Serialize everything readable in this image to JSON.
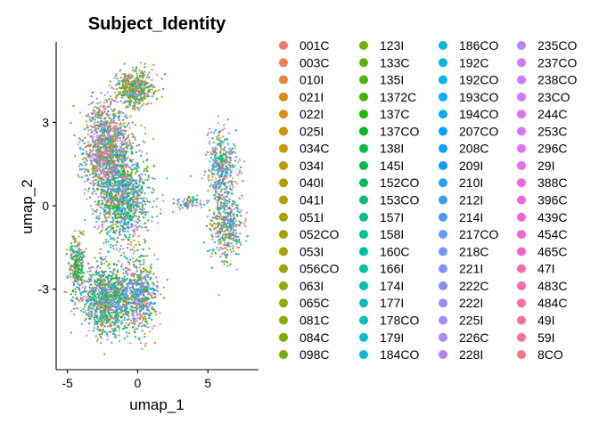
{
  "chart_data": {
    "type": "scatter",
    "title": "Subject_Identity",
    "xlabel": "umap_1",
    "ylabel": "umap_2",
    "xlim": [
      -5.8,
      8.6
    ],
    "ylim": [
      -5.9,
      5.9
    ],
    "x_ticks": [
      -5,
      0,
      5
    ],
    "y_ticks": [
      -3,
      0,
      3
    ],
    "grid": false,
    "legend_position": "right",
    "legend_title": "",
    "legend_columns": 4,
    "series": [
      {
        "name": "001C",
        "color": "#F8766D"
      },
      {
        "name": "003C",
        "color": "#F27D52"
      },
      {
        "name": "010I",
        "color": "#EB8335"
      },
      {
        "name": "021I",
        "color": "#E38900"
      },
      {
        "name": "022I",
        "color": "#DC8E00"
      },
      {
        "name": "025I",
        "color": "#D39200"
      },
      {
        "name": "034C",
        "color": "#C99800"
      },
      {
        "name": "034I",
        "color": "#C09B00"
      },
      {
        "name": "040I",
        "color": "#B79F00"
      },
      {
        "name": "041I",
        "color": "#ADA200"
      },
      {
        "name": "051I",
        "color": "#A3A500"
      },
      {
        "name": "052CO",
        "color": "#A5A000"
      },
      {
        "name": "053I",
        "color": "#A9A100"
      },
      {
        "name": "056CO",
        "color": "#9FA300"
      },
      {
        "name": "063I",
        "color": "#95A900"
      },
      {
        "name": "065C",
        "color": "#8EAB00"
      },
      {
        "name": "081C",
        "color": "#86AE00"
      },
      {
        "name": "084C",
        "color": "#7CAE00"
      },
      {
        "name": "098C",
        "color": "#72B000"
      },
      {
        "name": "123I",
        "color": "#6BB100"
      },
      {
        "name": "133C",
        "color": "#5EB300"
      },
      {
        "name": "135I",
        "color": "#4FB600"
      },
      {
        "name": "1372C",
        "color": "#3CB800"
      },
      {
        "name": "137C",
        "color": "#1CBA00"
      },
      {
        "name": "137CO",
        "color": "#00BB1F"
      },
      {
        "name": "138I",
        "color": "#00BC3E"
      },
      {
        "name": "145I",
        "color": "#00BD53"
      },
      {
        "name": "152CO",
        "color": "#00BE67"
      },
      {
        "name": "153CO",
        "color": "#00BF78"
      },
      {
        "name": "157I",
        "color": "#00C087"
      },
      {
        "name": "158I",
        "color": "#00C096"
      },
      {
        "name": "160C",
        "color": "#00C19F"
      },
      {
        "name": "166I",
        "color": "#00C1A7"
      },
      {
        "name": "174I",
        "color": "#00C0B1"
      },
      {
        "name": "177I",
        "color": "#00C0BA"
      },
      {
        "name": "178CO",
        "color": "#00BFC4"
      },
      {
        "name": "179I",
        "color": "#00BECD"
      },
      {
        "name": "184CO",
        "color": "#00BCD5"
      },
      {
        "name": "186CO",
        "color": "#00BADE"
      },
      {
        "name": "192C",
        "color": "#00B8E5"
      },
      {
        "name": "192CO",
        "color": "#00B4EC"
      },
      {
        "name": "193CO",
        "color": "#00B0F2"
      },
      {
        "name": "194CO",
        "color": "#00ACF6"
      },
      {
        "name": "207CO",
        "color": "#00A6FA"
      },
      {
        "name": "208C",
        "color": "#00A5FF"
      },
      {
        "name": "209I",
        "color": "#00A0FF"
      },
      {
        "name": "210I",
        "color": "#21A0FF"
      },
      {
        "name": "212I",
        "color": "#3A9AFF"
      },
      {
        "name": "214I",
        "color": "#4D96FF"
      },
      {
        "name": "217CO",
        "color": "#619CFF"
      },
      {
        "name": "218C",
        "color": "#6F97FF"
      },
      {
        "name": "221I",
        "color": "#7B92FF"
      },
      {
        "name": "222C",
        "color": "#878EFF"
      },
      {
        "name": "222I",
        "color": "#9590FF"
      },
      {
        "name": "225I",
        "color": "#9F8CFF"
      },
      {
        "name": "226C",
        "color": "#A987FF"
      },
      {
        "name": "228I",
        "color": "#B383FF"
      },
      {
        "name": "235CO",
        "color": "#BD7EFF"
      },
      {
        "name": "237CO",
        "color": "#C77CFF"
      },
      {
        "name": "238CO",
        "color": "#D076FF"
      },
      {
        "name": "23CO",
        "color": "#D874FD"
      },
      {
        "name": "244C",
        "color": "#DE72F6"
      },
      {
        "name": "253C",
        "color": "#E36EF6"
      },
      {
        "name": "296C",
        "color": "#E76BF3"
      },
      {
        "name": "29I",
        "color": "#EB69EC"
      },
      {
        "name": "388C",
        "color": "#F066E6"
      },
      {
        "name": "396C",
        "color": "#F364DE"
      },
      {
        "name": "439C",
        "color": "#F563D6"
      },
      {
        "name": "454C",
        "color": "#F763CD"
      },
      {
        "name": "465C",
        "color": "#F864C3"
      },
      {
        "name": "47I",
        "color": "#F966BA"
      },
      {
        "name": "483C",
        "color": "#FA68B0"
      },
      {
        "name": "484C",
        "color": "#FA6BA6"
      },
      {
        "name": "49I",
        "color": "#F9709B"
      },
      {
        "name": "59I",
        "color": "#F8738F"
      },
      {
        "name": "8CO",
        "color": "#F8767D"
      }
    ],
    "clusters": [
      {
        "cx": -2.1,
        "cy": 2.0,
        "sx": 1.35,
        "sy": 1.35,
        "n": 1300,
        "bias": [
          3,
          10,
          56,
          58,
          54
        ]
      },
      {
        "cx": -1.0,
        "cy": 0.2,
        "sx": 1.5,
        "sy": 1.25,
        "n": 1000,
        "bias": [
          20,
          26,
          32,
          41
        ]
      },
      {
        "cx": -2.1,
        "cy": -3.4,
        "sx": 1.4,
        "sy": 1.0,
        "n": 1100,
        "bias": [
          24,
          25,
          30,
          35,
          49
        ]
      },
      {
        "cx": 0.2,
        "cy": -3.2,
        "sx": 1.0,
        "sy": 1.1,
        "n": 550,
        "bias": [
          60,
          18,
          44
        ]
      },
      {
        "cx": -0.3,
        "cy": 4.2,
        "sx": 1.1,
        "sy": 0.5,
        "n": 450,
        "bias": [
          17,
          18,
          20
        ]
      },
      {
        "cx": -4.3,
        "cy": -2.2,
        "sx": 0.45,
        "sy": 0.9,
        "n": 260,
        "bias": [
          23,
          24,
          25
        ]
      },
      {
        "cx": 6.0,
        "cy": 1.3,
        "sx": 0.8,
        "sy": 1.0,
        "n": 400,
        "bias": [
          25,
          40,
          60
        ]
      },
      {
        "cx": 6.3,
        "cy": -0.7,
        "sx": 0.9,
        "sy": 0.95,
        "n": 380,
        "bias": [
          44,
          26,
          2
        ]
      },
      {
        "cx": 3.8,
        "cy": 0.1,
        "sx": 1.0,
        "sy": 0.18,
        "n": 70,
        "bias": [
          30,
          42
        ]
      }
    ]
  }
}
